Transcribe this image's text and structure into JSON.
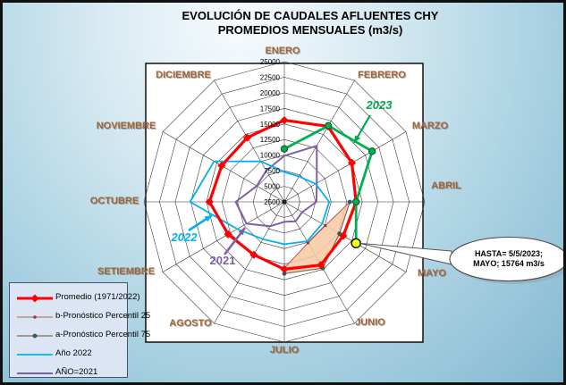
{
  "title": {
    "line1": "EVOLUCIÓN DE CAUDALES AFLUENTES CHY",
    "line2": "PROMEDIOS MENSUALES (m3/s)"
  },
  "chart_data": {
    "type": "radar",
    "categories": [
      "ENERO",
      "FEBRERO",
      "MARZO",
      "ABRIL",
      "MAYO",
      "JUNIO",
      "JULIO",
      "AGOSTO",
      "SETIEMBRE",
      "OCTUBRE",
      "NOVIEMBRE",
      "DICIEMBRE"
    ],
    "axis": {
      "min": 2500,
      "max": 25000,
      "step": 2500,
      "unit": "m3/s",
      "tick_labels": [
        "2500",
        "5000",
        "7500",
        "10000",
        "12500",
        "15000",
        "17500",
        "20000",
        "22500",
        "25000"
      ]
    },
    "series": [
      {
        "name": "Promedio (1971/2022)",
        "color": "#FF0000",
        "width": 3.2,
        "marker": "diamond",
        "closed": true,
        "values": [
          15600,
          16500,
          15000,
          14000,
          13400,
          14200,
          13300,
          12300,
          12900,
          14500,
          14100,
          14400
        ]
      },
      {
        "name": "b-Pronóstico Percentil 25",
        "color": "#B05F55",
        "width": 1,
        "marker": "dot-small",
        "marker_color": "#8B3A3A",
        "closed": false,
        "values": [
          null,
          null,
          null,
          13000,
          10100,
          10100,
          13100,
          null,
          null,
          null,
          null,
          null
        ]
      },
      {
        "name": "a-Pronóstico Percentil 75",
        "color": "#7A6A55",
        "width": 1.2,
        "marker": "dot",
        "marker_color": "#2A5E52",
        "closed": false,
        "values": [
          null,
          null,
          null,
          13000,
          12700,
          14800,
          14000,
          null,
          null,
          null,
          null,
          null
        ]
      },
      {
        "name": "Año 2022",
        "color": "#00B0F0",
        "width": 1.8,
        "marker": "none",
        "closed": true,
        "values": [
          7300,
          7200,
          8300,
          9700,
          9500,
          9800,
          9300,
          9400,
          11200,
          17600,
          15500,
          10000
        ]
      },
      {
        "name": "AÑO=2021",
        "color": "#7E5FA4",
        "width": 2,
        "marker": "none",
        "closed": true,
        "values": [
          9900,
          12900,
          8500,
          7650,
          5800,
          6100,
          5700,
          7000,
          9500,
          10300,
          7600,
          8300
        ]
      },
      {
        "name": "2023",
        "color": "#00B050",
        "width": 2.8,
        "marker": "circle",
        "marker_color": "#145A32",
        "closed": false,
        "values": [
          11000,
          16600,
          18750,
          14000,
          15764,
          null,
          null,
          null,
          null,
          null,
          null,
          null
        ]
      }
    ],
    "band": {
      "between": [
        "b-Pronóstico Percentil 25",
        "a-Pronóstico Percentil 75"
      ],
      "fill": "#F9C9A2"
    },
    "highlight": {
      "month": "MAYO",
      "value": 15764,
      "marker_color": "#FFFF00"
    },
    "annotations": {
      "y2023": {
        "label": "2023",
        "color": "#00A84F"
      },
      "y2022": {
        "label": "2022",
        "color": "#00B0F0"
      },
      "y2021": {
        "label": "2021",
        "color": "#7E5FA4"
      },
      "callout": {
        "line1": "HASTA= 5/5/2023;",
        "line2": "MAYO; 15764 m3/s"
      }
    }
  },
  "legend": {
    "items": [
      {
        "label": "Promedio (1971/2022)"
      },
      {
        "label": "b-Pronóstico Percentil 25"
      },
      {
        "label": "a-Pronóstico Percentil 75"
      },
      {
        "label": "Año 2022"
      },
      {
        "label": "AÑO=2021"
      }
    ]
  }
}
